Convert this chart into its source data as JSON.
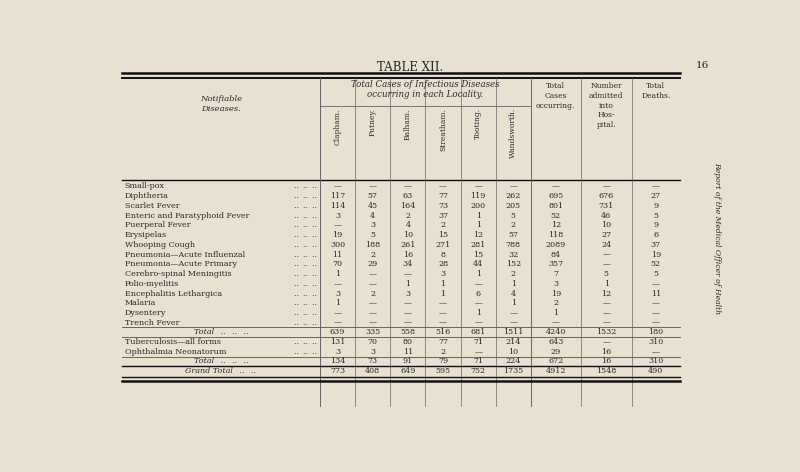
{
  "title": "TABLE XII.",
  "subtitle1": "Total Cases of Infectious Diseases",
  "subtitle2": "occurring in each Locality.",
  "side_text": "Report of the Medical Officer of Health",
  "page_num": "16",
  "col_headers_locality": [
    "Clapham.",
    "Putney.",
    "Balham.",
    "Streatham.",
    "Tooting.",
    "Wandsworth."
  ],
  "rows": [
    {
      "label": "Small-pox",
      "dots": true,
      "vals": [
        "—",
        "—",
        "—",
        "—",
        "—",
        "—",
        "—",
        "—",
        "—"
      ]
    },
    {
      "label": "Diphtheria",
      "dots": true,
      "vals": [
        "117",
        "57",
        "63",
        "77",
        "119",
        "262",
        "695",
        "676",
        "27"
      ]
    },
    {
      "label": "Scarlet Fever",
      "dots": true,
      "vals": [
        "114",
        "45",
        "164",
        "73",
        "200",
        "205",
        "801",
        "731",
        "9"
      ]
    },
    {
      "label": "Enteric and Paratyphoid Fever",
      "dots": true,
      "vals": [
        "3",
        "4",
        "2",
        "37",
        "1",
        "5",
        "52",
        "46",
        "5"
      ]
    },
    {
      "label": "Puerperal Fever",
      "dots": true,
      "vals": [
        "—",
        "3",
        "4",
        "2",
        "1",
        "2",
        "12",
        "10",
        "9"
      ]
    },
    {
      "label": "Erysipelas",
      "dots": true,
      "vals": [
        "19",
        "5",
        "10",
        "15",
        "12",
        "57",
        "118",
        "27",
        "6"
      ]
    },
    {
      "label": "Whooping Cough",
      "dots": true,
      "vals": [
        "300",
        "188",
        "261",
        "271",
        "281",
        "788",
        "2089",
        "24",
        "37"
      ]
    },
    {
      "label": "Pneumonia—Acute Influenzal",
      "dots": true,
      "vals": [
        "11",
        "2",
        "16",
        "8",
        "15",
        "32",
        "84",
        "—",
        "19"
      ]
    },
    {
      "label": "Pneumonia—Acute Primary",
      "dots": true,
      "vals": [
        "70",
        "29",
        "34",
        "28",
        "44",
        "152",
        "357",
        "—",
        "52"
      ]
    },
    {
      "label": "Cerebro-spinal Meningitis",
      "dots": true,
      "vals": [
        "1",
        "—",
        "—",
        "3",
        "1",
        "2",
        "7",
        "5",
        "5"
      ]
    },
    {
      "label": "Polio-myelitis",
      "dots": true,
      "vals": [
        "—",
        "—",
        "1",
        "1",
        "—",
        "1",
        "3",
        "1",
        "—"
      ]
    },
    {
      "label": "Encephalitis Lethargica",
      "dots": true,
      "vals": [
        "3",
        "2",
        "3",
        "1",
        "6",
        "4",
        "19",
        "12",
        "11"
      ]
    },
    {
      "label": "Malaria",
      "dots": true,
      "vals": [
        "1",
        "—",
        "—",
        "—",
        "—",
        "1",
        "2",
        "—",
        "—"
      ]
    },
    {
      "label": "Dysentery",
      "dots": true,
      "vals": [
        "—",
        "—",
        "—",
        "—",
        "1",
        "—",
        "1",
        "—",
        "—"
      ]
    },
    {
      "label": "Trench Fever",
      "dots": true,
      "vals": [
        "—",
        "—",
        "—",
        "—",
        "—",
        "—",
        "—",
        "—",
        "—"
      ]
    }
  ],
  "total_row": {
    "vals": [
      "639",
      "335",
      "558",
      "516",
      "681",
      "1511",
      "4240",
      "1532",
      "180"
    ]
  },
  "tb_rows": [
    {
      "label": "Tuberculosis—all forms",
      "dots": true,
      "vals": [
        "131",
        "70",
        "80",
        "77",
        "71",
        "214",
        "643",
        "—",
        "310"
      ]
    },
    {
      "label": "Ophthalmia Neonatorum",
      "dots": true,
      "vals": [
        "3",
        "3",
        "11",
        "2",
        "—",
        "10",
        "29",
        "16",
        "—"
      ]
    }
  ],
  "total2_row": {
    "vals": [
      "134",
      "73",
      "91",
      "79",
      "71",
      "224",
      "672",
      "16",
      "310"
    ]
  },
  "grand_total_row": {
    "vals": [
      "773",
      "408",
      "649",
      "595",
      "752",
      "1735",
      "4912",
      "1548",
      "490"
    ]
  },
  "bg_color": "#e8e0d0",
  "text_color": "#2a2a2a",
  "line_color": "#666666",
  "heavy_line_color": "#111111"
}
